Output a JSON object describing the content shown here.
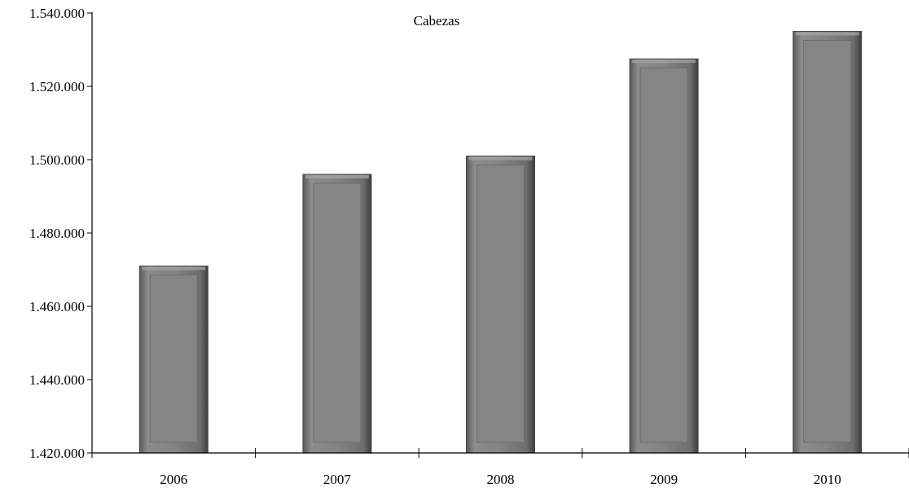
{
  "chart_data": {
    "type": "bar",
    "title": "Cabezas",
    "xlabel": "",
    "ylabel": "",
    "categories": [
      "2006",
      "2007",
      "2008",
      "2009",
      "2010"
    ],
    "values": [
      1471000,
      1496000,
      1501000,
      1527500,
      1535000
    ],
    "ylim": [
      1420000,
      1540000
    ],
    "yticks": [
      1420000,
      1440000,
      1460000,
      1480000,
      1500000,
      1520000,
      1540000
    ],
    "ytick_labels": [
      "1.420.000",
      "1.440.000",
      "1.460.000",
      "1.480.000",
      "1.500.000",
      "1.520.000",
      "1.540.000"
    ],
    "grid": false,
    "legend": "none",
    "bar_color": "#808080"
  }
}
